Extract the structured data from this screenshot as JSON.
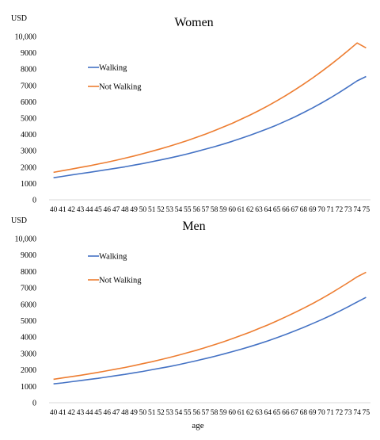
{
  "chart_data": [
    {
      "type": "line",
      "title": "Women",
      "ylabel": "USD",
      "xlabel": "",
      "ylim": [
        0,
        10000
      ],
      "yticks": [
        "0",
        "1000",
        "2000",
        "3000",
        "4000",
        "5000",
        "6000",
        "7000",
        "8000",
        "9000",
        "10,000"
      ],
      "x": [
        40,
        41,
        42,
        43,
        44,
        45,
        46,
        47,
        48,
        49,
        50,
        51,
        52,
        53,
        54,
        55,
        56,
        57,
        58,
        59,
        60,
        61,
        62,
        63,
        64,
        65,
        66,
        67,
        68,
        69,
        70,
        71,
        72,
        73,
        74,
        75
      ],
      "legend_position": "upper-left",
      "grid": false,
      "series": [
        {
          "name": "Walking",
          "color": "#4472c4",
          "values": [
            1350,
            1430,
            1520,
            1600,
            1680,
            1760,
            1850,
            1930,
            2020,
            2120,
            2220,
            2330,
            2440,
            2560,
            2680,
            2810,
            2950,
            3100,
            3250,
            3410,
            3580,
            3760,
            3950,
            4150,
            4360,
            4580,
            4820,
            5070,
            5340,
            5620,
            5920,
            6240,
            6570,
            6920,
            7280,
            7550
          ]
        },
        {
          "name": "Not Walking",
          "color": "#ed7d31",
          "values": [
            1680,
            1780,
            1880,
            1980,
            2080,
            2190,
            2300,
            2420,
            2550,
            2680,
            2820,
            2970,
            3120,
            3280,
            3450,
            3630,
            3820,
            4020,
            4230,
            4450,
            4680,
            4930,
            5190,
            5460,
            5750,
            6060,
            6380,
            6720,
            7080,
            7450,
            7850,
            8260,
            8690,
            9140,
            9600,
            9300
          ]
        }
      ]
    },
    {
      "type": "line",
      "title": "Men",
      "ylabel": "USD",
      "xlabel": "age",
      "ylim": [
        0,
        10000
      ],
      "yticks": [
        "0",
        "1000",
        "2000",
        "3000",
        "4000",
        "5000",
        "6000",
        "7000",
        "8000",
        "9000",
        "10,000"
      ],
      "x": [
        40,
        41,
        42,
        43,
        44,
        45,
        46,
        47,
        48,
        49,
        50,
        51,
        52,
        53,
        54,
        55,
        56,
        57,
        58,
        59,
        60,
        61,
        62,
        63,
        64,
        65,
        66,
        67,
        68,
        69,
        70,
        71,
        72,
        73,
        74,
        75
      ],
      "legend_position": "upper-left",
      "grid": false,
      "series": [
        {
          "name": "Walking",
          "color": "#4472c4",
          "values": [
            1150,
            1210,
            1280,
            1350,
            1420,
            1490,
            1570,
            1650,
            1730,
            1820,
            1910,
            2010,
            2110,
            2210,
            2320,
            2440,
            2560,
            2690,
            2820,
            2960,
            3110,
            3260,
            3420,
            3590,
            3770,
            3960,
            4160,
            4370,
            4590,
            4820,
            5060,
            5310,
            5570,
            5850,
            6140,
            6420
          ]
        },
        {
          "name": "Not Walking",
          "color": "#ed7d31",
          "values": [
            1430,
            1510,
            1590,
            1670,
            1760,
            1850,
            1950,
            2050,
            2150,
            2260,
            2380,
            2500,
            2630,
            2760,
            2900,
            3050,
            3200,
            3360,
            3530,
            3710,
            3900,
            4100,
            4300,
            4520,
            4740,
            4980,
            5230,
            5490,
            5760,
            6040,
            6340,
            6650,
            6980,
            7320,
            7670,
            7950
          ]
        }
      ]
    }
  ]
}
